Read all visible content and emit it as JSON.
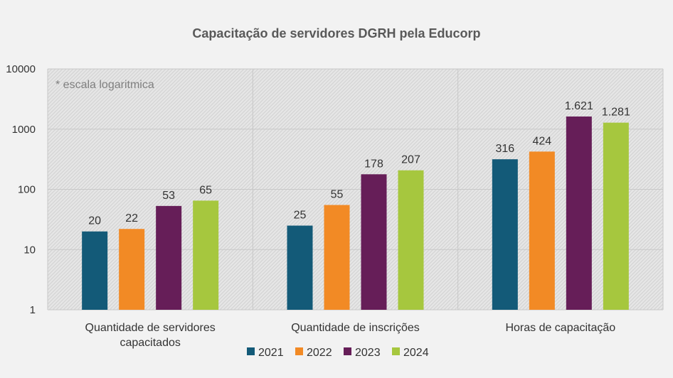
{
  "chart_data": {
    "type": "bar",
    "title": "Capacitação de servidores DGRH pela Educorp",
    "note": "* escala logaritmica",
    "yscale": "log",
    "ylim": [
      1,
      10000
    ],
    "yticks": [
      "1",
      "10",
      "100",
      "1000",
      "10000"
    ],
    "grid": true,
    "legend_position": "bottom",
    "categories": [
      [
        "Quantidade de servidores",
        "capacitados"
      ],
      [
        "Quantidade de inscrições"
      ],
      [
        "Horas de capacitação"
      ]
    ],
    "series": [
      {
        "name": "2021",
        "color": "#135a78",
        "values": [
          20,
          25,
          316
        ],
        "labels": [
          "20",
          "25",
          "316"
        ]
      },
      {
        "name": "2022",
        "color": "#f28a25",
        "values": [
          22,
          55,
          424
        ],
        "labels": [
          "22",
          "55",
          "424"
        ]
      },
      {
        "name": "2023",
        "color": "#661e58",
        "values": [
          53,
          178,
          1621
        ],
        "labels": [
          "53",
          "178",
          "1.621"
        ]
      },
      {
        "name": "2024",
        "color": "#a6c73e",
        "values": [
          65,
          207,
          1281
        ],
        "labels": [
          "65",
          "207",
          "1.281"
        ]
      }
    ]
  }
}
